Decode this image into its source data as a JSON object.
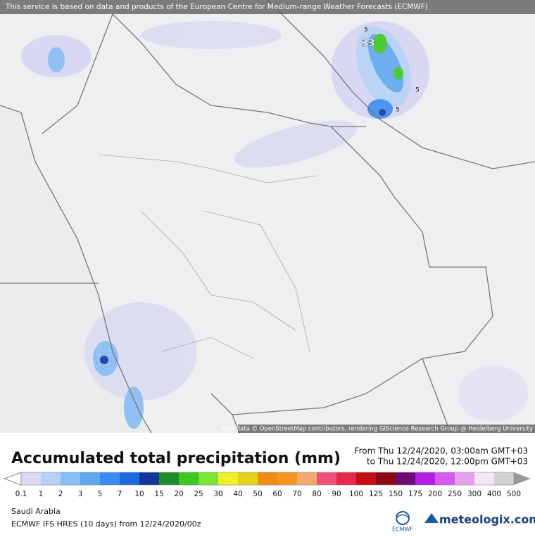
{
  "header": {
    "disclaimer": "This service is based on data and products of the European Centre for Medium-range Weather Forecasts (ECMWF)"
  },
  "map": {
    "labels": [
      "33",
      "5",
      "5",
      "5"
    ],
    "attribution": "Map data © OpenStreetMap contributors, rendering GIScience Research Group @ Heidelberg University"
  },
  "legend": {
    "title": "Accumulated total precipitation (mm)",
    "from": "From Thu 12/24/2020, 03:00am GMT+03",
    "to": "to Thu 12/24/2020, 12:00pm GMT+03",
    "levels": [
      0.1,
      1,
      2,
      3,
      5,
      7,
      10,
      15,
      20,
      25,
      30,
      40,
      50,
      60,
      70,
      80,
      90,
      100,
      125,
      150,
      175,
      200,
      250,
      300,
      400,
      500
    ],
    "colors": [
      "#d9d9f2",
      "#b4d2f7",
      "#87bdf4",
      "#5ea8ef",
      "#3b8cf0",
      "#1d6ae0",
      "#14369c",
      "#1e8c28",
      "#3cc81e",
      "#78e632",
      "#f0f028",
      "#e6d21e",
      "#f08c14",
      "#f5961e",
      "#f5aa6e",
      "#f0507a",
      "#e6284b",
      "#c30f14",
      "#8c0a14",
      "#6e0a78",
      "#b41ee6",
      "#d75af0",
      "#e6a0f0",
      "#f5e6f5",
      "#d2d2d2"
    ]
  },
  "footer": {
    "region": "Saudi Arabia",
    "model": "ECMWF IFS HRES (10 days) from  12/24/2020/00z",
    "ecmwf_logo": "ECMWF",
    "brand": "meteologix.com"
  }
}
